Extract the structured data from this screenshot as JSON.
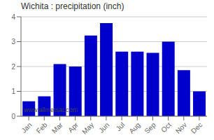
{
  "chart_data": {
    "type": "bar",
    "title": "Wichita : precipitation (inch)",
    "categories": [
      "Jan",
      "Feb",
      "Mar",
      "Apr",
      "May",
      "Jun",
      "Jul",
      "Aug",
      "Sep",
      "Oct",
      "Nov",
      "Dec"
    ],
    "values": [
      0.6,
      0.8,
      2.1,
      2.0,
      3.25,
      3.75,
      2.6,
      2.6,
      2.55,
      3.0,
      1.85,
      1.0
    ],
    "color": "#0000CC",
    "ylim": [
      0,
      4
    ],
    "yticks": [
      0,
      1,
      2,
      3,
      4
    ],
    "grid": true,
    "annotations": [
      "www.allmetsat.com"
    ]
  }
}
